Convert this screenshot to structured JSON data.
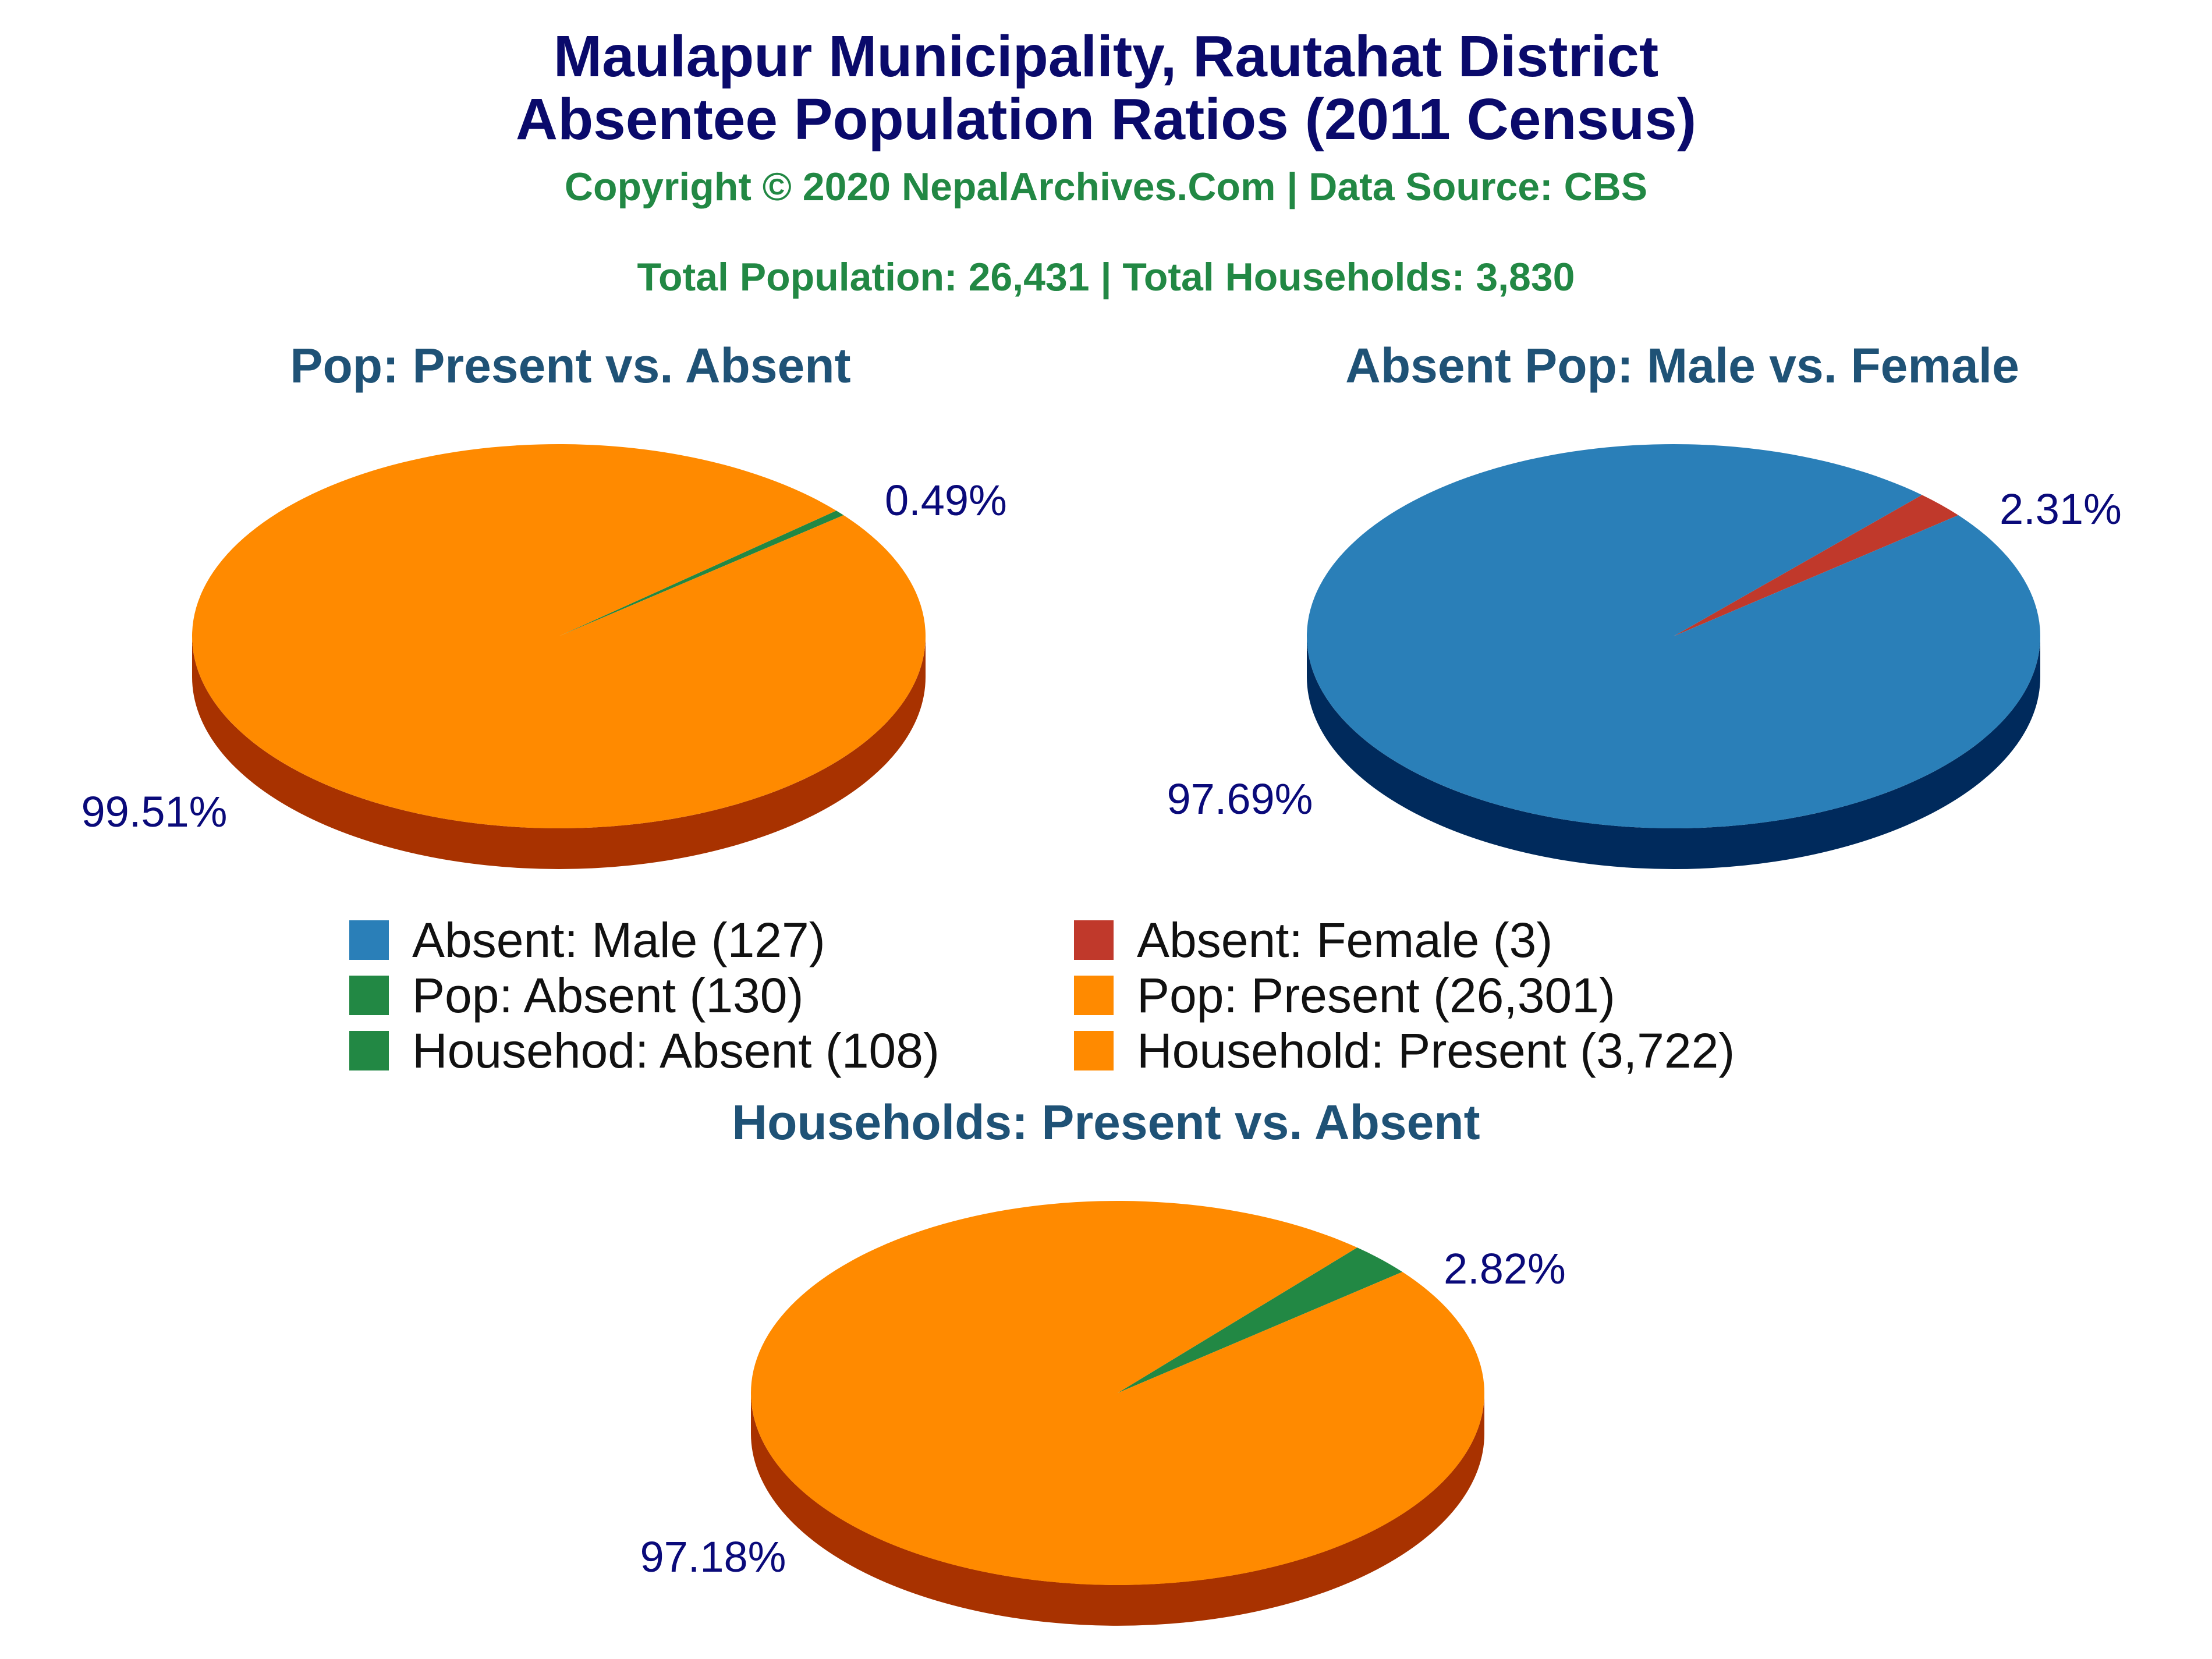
{
  "title_line1": "Maulapur Municipality, Rautahat District",
  "title_line2": "Absentee Population Ratios (2011 Census)",
  "copyright": "Copyright © 2020 NepalArchives.Com | Data Source: CBS",
  "totals": "Total Population: 26,431 | Total Households: 3,830",
  "legend": [
    {
      "label": "Absent: Male (127)",
      "color": "#2a7fb8"
    },
    {
      "label": "Absent: Female (3)",
      "color": "#c0392b"
    },
    {
      "label": "Pop: Absent (130)",
      "color": "#228844"
    },
    {
      "label": "Pop: Present (26,301)",
      "color": "#ff8a00"
    },
    {
      "label": "Househod: Absent (108)",
      "color": "#228844"
    },
    {
      "label": "Household: Present (3,722)",
      "color": "#ff8a00"
    }
  ],
  "chart_data": [
    {
      "type": "pie",
      "title": "Pop: Present vs. Absent",
      "slices": [
        {
          "name": "Pop: Absent",
          "value": 130,
          "percent_label": "0.49%",
          "color": "#228844"
        },
        {
          "name": "Pop: Present",
          "value": 26301,
          "percent_label": "99.51%",
          "color": "#ff8a00"
        }
      ],
      "side_color": "#a83200"
    },
    {
      "type": "pie",
      "title": "Absent Pop: Male vs. Female",
      "slices": [
        {
          "name": "Absent: Female",
          "value": 3,
          "percent_label": "2.31%",
          "color": "#c0392b"
        },
        {
          "name": "Absent: Male",
          "value": 127,
          "percent_label": "97.69%",
          "color": "#2a7fb8"
        }
      ],
      "side_color": "#002a5c"
    },
    {
      "type": "pie",
      "title": "Households: Present vs. Absent",
      "slices": [
        {
          "name": "Househod: Absent",
          "value": 108,
          "percent_label": "2.82%",
          "color": "#228844"
        },
        {
          "name": "Household: Present",
          "value": 3722,
          "percent_label": "97.18%",
          "color": "#ff8a00"
        }
      ],
      "side_color": "#a83200"
    }
  ]
}
